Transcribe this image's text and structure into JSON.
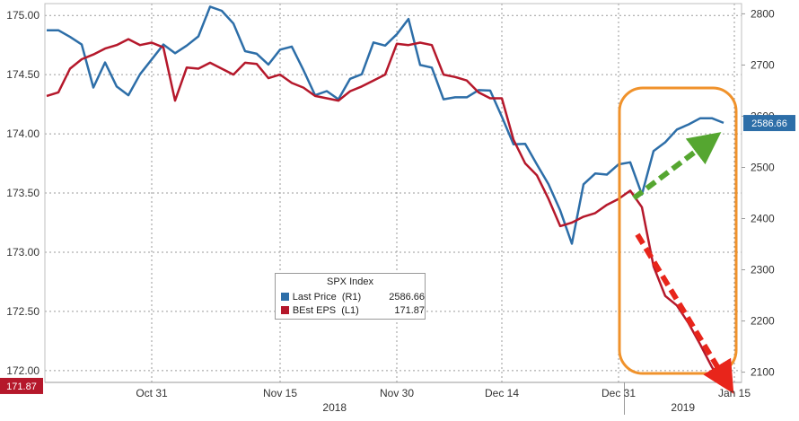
{
  "chart_data": {
    "type": "line",
    "legend": {
      "title": "SPX Index",
      "placement": "bottom-center",
      "entries": [
        {
          "name": "Last Price  (R1)",
          "value": "2586.66",
          "color": "#2d6ea8"
        },
        {
          "name": "BEst EPS  (L1)",
          "value": "171.87",
          "color": "#b5182b"
        }
      ]
    },
    "x_tick_labels": [
      "Oct 31",
      "Nov 15",
      "Nov 30",
      "Dec 14",
      "Dec 31",
      "Jan 15"
    ],
    "year_labels": [
      "2018",
      "2019"
    ],
    "y_left": {
      "ticks": [
        "175.00",
        "174.50",
        "174.00",
        "173.50",
        "173.00",
        "172.50",
        "172.00"
      ],
      "range": [
        171.9,
        175.1
      ]
    },
    "y_right": {
      "ticks": [
        "2800",
        "2700",
        "2600",
        "2500",
        "2400",
        "2300",
        "2200",
        "2100"
      ],
      "range": [
        2080,
        2820
      ]
    },
    "last_value_labels": {
      "left": "171.87",
      "right": "2586.66"
    },
    "grid": true,
    "x": [
      "Oct 18",
      "Oct 19",
      "Oct 22",
      "Oct 23",
      "Oct 24",
      "Oct 25",
      "Oct 26",
      "Oct 29",
      "Oct 30",
      "Oct 31",
      "Nov 1",
      "Nov 2",
      "Nov 5",
      "Nov 6",
      "Nov 7",
      "Nov 8",
      "Nov 9",
      "Nov 12",
      "Nov 13",
      "Nov 14",
      "Nov 15",
      "Nov 16",
      "Nov 19",
      "Nov 20",
      "Nov 21",
      "Nov 23",
      "Nov 26",
      "Nov 27",
      "Nov 28",
      "Nov 29",
      "Nov 30",
      "Dec 3",
      "Dec 4",
      "Dec 6",
      "Dec 7",
      "Dec 10",
      "Dec 11",
      "Dec 12",
      "Dec 13",
      "Dec 14",
      "Dec 17",
      "Dec 18",
      "Dec 19",
      "Dec 20",
      "Dec 21",
      "Dec 24",
      "Dec 26",
      "Dec 27",
      "Dec 28",
      "Dec 31",
      "Jan 2",
      "Jan 3",
      "Jan 4",
      "Jan 7",
      "Jan 8",
      "Jan 9",
      "Jan 10",
      "Jan 11",
      "Jan 14"
    ],
    "series": [
      {
        "name": "Last Price  (R1)",
        "axis": "right",
        "color": "#2d6ea8",
        "values": [
          2768,
          2768,
          2755,
          2740,
          2656,
          2705,
          2658,
          2641,
          2682,
          2711,
          2740,
          2723,
          2738,
          2756,
          2814,
          2806,
          2781,
          2727,
          2722,
          2701,
          2730,
          2736,
          2690,
          2641,
          2649,
          2633,
          2673,
          2682,
          2744,
          2738,
          2760,
          2790,
          2700,
          2695,
          2633,
          2637,
          2637,
          2651,
          2650,
          2599,
          2545,
          2546,
          2506,
          2467,
          2416,
          2351,
          2467,
          2488,
          2486,
          2506,
          2510,
          2447,
          2532,
          2549,
          2574,
          2584,
          2596,
          2596,
          2587
        ]
      },
      {
        "name": "BEst EPS  (L1)",
        "axis": "left",
        "color": "#b5182b",
        "values": [
          174.32,
          174.35,
          174.55,
          174.63,
          174.67,
          174.72,
          174.75,
          174.8,
          174.75,
          174.77,
          174.73,
          174.28,
          174.56,
          174.55,
          174.6,
          174.55,
          174.5,
          174.6,
          174.59,
          174.47,
          174.5,
          174.43,
          174.39,
          174.32,
          174.3,
          174.28,
          174.36,
          174.4,
          174.45,
          174.5,
          174.76,
          174.75,
          174.77,
          174.75,
          174.5,
          174.48,
          174.45,
          174.35,
          174.3,
          174.3,
          173.95,
          173.75,
          173.65,
          173.45,
          173.22,
          173.25,
          173.3,
          173.33,
          173.4,
          173.45,
          173.52,
          173.38,
          172.88,
          172.63,
          172.55,
          172.4,
          172.22,
          172.03,
          171.87
        ]
      }
    ],
    "annotations": [
      {
        "type": "rounded-rectangle",
        "color": "#f0922b",
        "x_from": "Jan 2",
        "x_to": "Jan 14"
      },
      {
        "type": "dashed-arrow",
        "color": "#55a630",
        "direction": "up"
      },
      {
        "type": "dashed-arrow",
        "color": "#e8251b",
        "direction": "down"
      }
    ]
  }
}
